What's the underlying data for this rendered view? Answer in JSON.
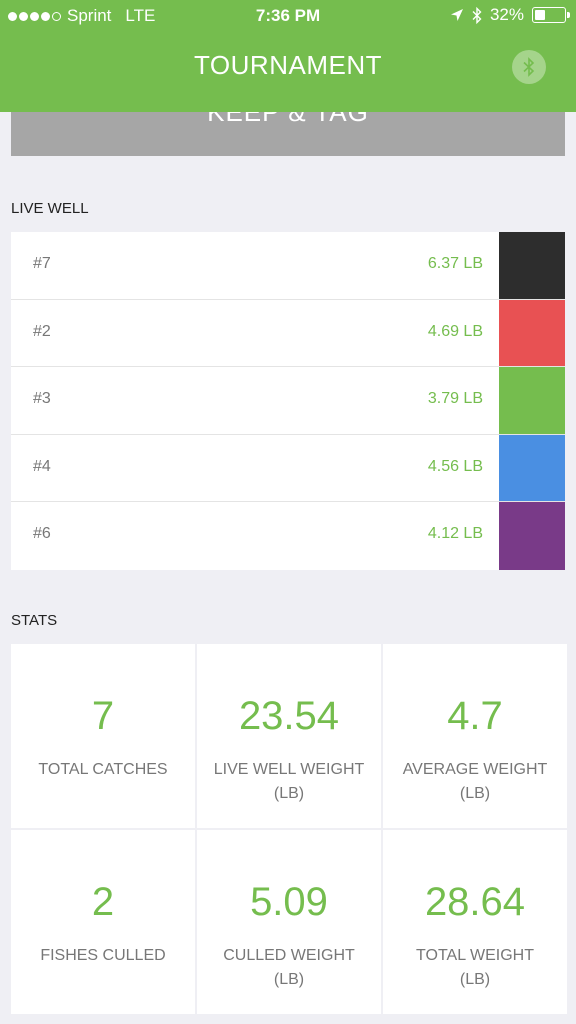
{
  "status_bar": {
    "carrier": "Sprint",
    "network": "LTE",
    "time": "7:36 PM",
    "battery": "32%"
  },
  "header": {
    "title": "TOURNAMENT",
    "bluetooth_icon": "bluetooth-icon"
  },
  "keep_tag": {
    "label": "KEEP & TAG"
  },
  "live_well": {
    "label": "LIVE WELL",
    "rows": [
      {
        "id": "#7",
        "weight": "6.37 LB",
        "color": "#2d2d2d"
      },
      {
        "id": "#2",
        "weight": "4.69 LB",
        "color": "#e85153"
      },
      {
        "id": "#3",
        "weight": "3.79 LB",
        "color": "#75bd4e"
      },
      {
        "id": "#4",
        "weight": "4.56 LB",
        "color": "#4a8fe2"
      },
      {
        "id": "#6",
        "weight": "4.12 LB",
        "color": "#793a88"
      }
    ]
  },
  "stats": {
    "label": "STATS",
    "cells": [
      {
        "value": "7",
        "label": "TOTAL CATCHES",
        "unit": ""
      },
      {
        "value": "23.54",
        "label": "LIVE WELL WEIGHT",
        "unit": "(LB)"
      },
      {
        "value": "4.7",
        "label": "AVERAGE WEIGHT",
        "unit": "(LB)"
      },
      {
        "value": "2",
        "label": "FISHES CULLED",
        "unit": ""
      },
      {
        "value": "5.09",
        "label": "CULLED WEIGHT",
        "unit": "(LB)"
      },
      {
        "value": "28.64",
        "label": "TOTAL WEIGHT",
        "unit": "(LB)"
      }
    ]
  },
  "colors": {
    "accent": "#75bd4e",
    "background": "#efeff4",
    "button_gray": "#a6a6a6"
  }
}
